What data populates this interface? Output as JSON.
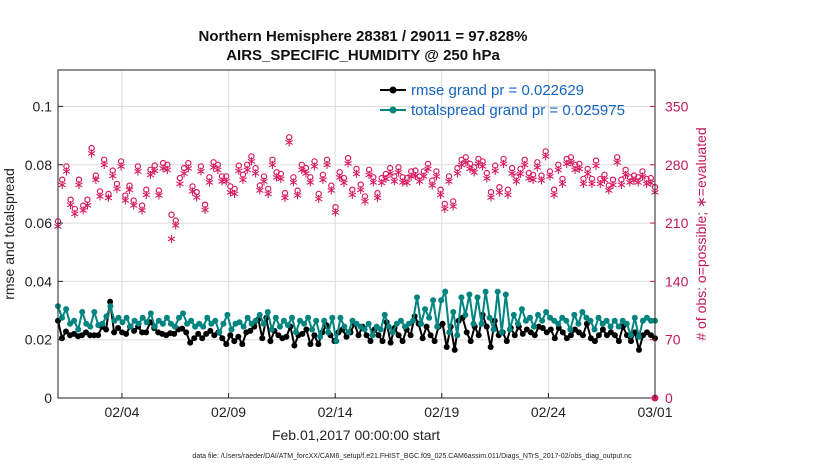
{
  "chart_data": {
    "type": "line",
    "title": "Northern Hemisphere 28381 / 29011 = 97.828%",
    "subtitle": "AIRS_SPECIFIC_HUMIDITY @ 250 hPa",
    "xlabel": "Feb.01,2017 00:00:00 start",
    "ylabel": "rmse and totalspread",
    "ylabel_right": "# of obs: o=possible; ∗=evaluated",
    "x_ticks": [
      "02/04",
      "02/09",
      "02/14",
      "02/19",
      "02/24",
      "03/01"
    ],
    "x_tick_days": [
      3,
      8,
      13,
      18,
      23,
      28
    ],
    "xlim": [
      0.0,
      28.0
    ],
    "y_ticks": [
      "0",
      "0.02",
      "0.04",
      "0.06",
      "0.08",
      "0.1"
    ],
    "ylim": [
      0,
      0.1125
    ],
    "y_right_ticks": [
      "0",
      "70",
      "140",
      "210",
      "280",
      "350"
    ],
    "ylim_right": [
      0,
      393.75
    ],
    "grid": true,
    "footer": "data file: /Users/raeder/DAI/ATM_forcXX/CAM6_setup/f.e21.FHIST_BGC.f09_025.CAM6assim.011/Diags_NTrS_2017-02/obs_diag_output.nc",
    "series": [
      {
        "name": "rmse grand pr = 0.022629",
        "color": "#000000",
        "marker": "circle",
        "axis": "left",
        "values": [
          0.0265,
          0.0205,
          0.0228,
          0.0215,
          0.022,
          0.0212,
          0.0215,
          0.0225,
          0.0215,
          0.0215,
          0.0215,
          0.0245,
          0.0235,
          0.033,
          0.0225,
          0.024,
          0.0225,
          0.022,
          0.0245,
          0.023,
          0.0245,
          0.0225,
          0.0225,
          0.026,
          0.024,
          0.0225,
          0.022,
          0.0215,
          0.0222,
          0.022,
          0.0235,
          0.0238,
          0.0225,
          0.019,
          0.0205,
          0.022,
          0.0205,
          0.022,
          0.023,
          0.0215,
          0.0225,
          0.0205,
          0.0185,
          0.0215,
          0.0195,
          0.021,
          0.0185,
          0.0225,
          0.023,
          0.0245,
          0.027,
          0.0205,
          0.0275,
          0.0195,
          0.023,
          0.0215,
          0.0205,
          0.021,
          0.0245,
          0.018,
          0.0215,
          0.022,
          0.0235,
          0.0185,
          0.0215,
          0.0185,
          0.0225,
          0.025,
          0.0215,
          0.0195,
          0.0225,
          0.0235,
          0.021,
          0.0225,
          0.0255,
          0.0215,
          0.0245,
          0.0215,
          0.0195,
          0.0235,
          0.0215,
          0.0195,
          0.026,
          0.019,
          0.024,
          0.0215,
          0.0195,
          0.0235,
          0.0215,
          0.028,
          0.0255,
          0.0205,
          0.0245,
          0.0215,
          0.0195,
          0.0245,
          0.0255,
          0.0175,
          0.0245,
          0.0165,
          0.0265,
          0.0275,
          0.0225,
          0.0195,
          0.0245,
          0.0215,
          0.0285,
          0.0245,
          0.0175,
          0.0265,
          0.0215,
          0.0225,
          0.0195,
          0.024,
          0.0215,
          0.0245,
          0.022,
          0.0235,
          0.0225,
          0.0215,
          0.0245,
          0.024,
          0.0225,
          0.0235,
          0.0205,
          0.024,
          0.0225,
          0.0205,
          0.0215,
          0.0235,
          0.0225,
          0.0215,
          0.0255,
          0.0205,
          0.0195,
          0.0215,
          0.0235,
          0.0215,
          0.0225,
          0.0215,
          0.0195,
          0.0245,
          0.0215,
          0.0195,
          0.0225,
          0.0165,
          0.0215,
          0.0225,
          0.0215,
          0.0205
        ]
      },
      {
        "name": "totalspread grand pr = 0.025975",
        "color": "#00847f",
        "marker": "circle",
        "axis": "left",
        "values": [
          0.0315,
          0.0275,
          0.0305,
          0.0255,
          0.0265,
          0.0235,
          0.0295,
          0.0255,
          0.0245,
          0.0295,
          0.025,
          0.0255,
          0.028,
          0.0315,
          0.0265,
          0.0275,
          0.026,
          0.0275,
          0.0245,
          0.0265,
          0.0255,
          0.0275,
          0.026,
          0.029,
          0.0245,
          0.0265,
          0.0255,
          0.0275,
          0.0255,
          0.0245,
          0.0275,
          0.029,
          0.0255,
          0.0265,
          0.0245,
          0.0255,
          0.0245,
          0.0275,
          0.0255,
          0.0265,
          0.0225,
          0.0255,
          0.0285,
          0.0235,
          0.0255,
          0.026,
          0.0245,
          0.0275,
          0.0255,
          0.0265,
          0.0285,
          0.0255,
          0.0295,
          0.0235,
          0.0275,
          0.0245,
          0.0265,
          0.025,
          0.0275,
          0.0225,
          0.0265,
          0.0255,
          0.0275,
          0.0235,
          0.0265,
          0.021,
          0.0265,
          0.0225,
          0.0275,
          0.0195,
          0.0275,
          0.0245,
          0.0225,
          0.0265,
          0.0255,
          0.0245,
          0.0235,
          0.0255,
          0.0215,
          0.0245,
          0.0235,
          0.0285,
          0.0245,
          0.0225,
          0.0255,
          0.0265,
          0.0245,
          0.0255,
          0.0265,
          0.0345,
          0.0255,
          0.0305,
          0.0275,
          0.0335,
          0.0245,
          0.0335,
          0.0365,
          0.0225,
          0.0295,
          0.0215,
          0.0345,
          0.0285,
          0.0355,
          0.0255,
          0.0345,
          0.0255,
          0.0365,
          0.0275,
          0.0235,
          0.0365,
          0.0225,
          0.0355,
          0.0235,
          0.0285,
          0.0255,
          0.0305,
          0.0265,
          0.0275,
          0.0245,
          0.0285,
          0.0265,
          0.0295,
          0.0275,
          0.0265,
          0.0255,
          0.0275,
          0.0265,
          0.0235,
          0.0285,
          0.0255,
          0.0295,
          0.0275,
          0.0265,
          0.0235,
          0.0275,
          0.0255,
          0.0265,
          0.0245,
          0.0265,
          0.0245,
          0.0265,
          0.0255,
          0.0215,
          0.0275,
          0.021,
          0.0265,
          0.0275,
          0.0265,
          0.0265
        ]
      },
      {
        "name": "possible",
        "color": "#d81b60",
        "marker": "o",
        "axis": "right",
        "values": [
          212,
          262,
          278,
          238,
          227,
          262,
          231,
          238,
          300,
          267,
          248,
          286,
          245,
          273,
          257,
          284,
          243,
          255,
          237,
          278,
          231,
          250,
          274,
          279,
          249,
          282,
          280,
          220,
          213,
          264,
          276,
          282,
          254,
          247,
          278,
          232,
          265,
          283,
          280,
          266,
          266,
          254,
          251,
          279,
          268,
          280,
          290,
          276,
          255,
          266,
          251,
          286,
          271,
          269,
          246,
          313,
          265,
          249,
          280,
          276,
          265,
          284,
          245,
          268,
          286,
          255,
          229,
          271,
          264,
          288,
          250,
          275,
          256,
          242,
          274,
          265,
          246,
          264,
          269,
          276,
          266,
          277,
          265,
          264,
          272,
          273,
          266,
          272,
          281,
          261,
          272,
          250,
          233,
          266,
          236,
          276,
          286,
          289,
          281,
          277,
          287,
          284,
          270,
          247,
          279,
          253,
          287,
          250,
          276,
          266,
          275,
          286,
          270,
          268,
          283,
          267,
          296,
          272,
          250,
          280,
          263,
          287,
          289,
          280,
          281,
          263,
          275,
          263,
          285,
          263,
          268,
          255,
          262,
          289,
          262,
          274,
          265,
          267,
          265,
          272,
          263,
          264,
          253
        ]
      },
      {
        "name": "evaluated",
        "color": "#d81b60",
        "marker": "*",
        "axis": "right",
        "values": [
          207,
          257,
          273,
          233,
          222,
          257,
          226,
          232,
          295,
          263,
          243,
          281,
          241,
          268,
          252,
          279,
          238,
          251,
          232,
          273,
          226,
          245,
          269,
          274,
          244,
          277,
          275,
          192,
          208,
          258,
          271,
          277,
          249,
          242,
          273,
          227,
          260,
          278,
          275,
          261,
          261,
          248,
          246,
          274,
          263,
          275,
          285,
          271,
          250,
          261,
          246,
          281,
          266,
          264,
          241,
          308,
          260,
          244,
          275,
          271,
          260,
          279,
          240,
          263,
          281,
          250,
          224,
          266,
          259,
          283,
          245,
          270,
          251,
          237,
          269,
          260,
          241,
          259,
          264,
          271,
          261,
          272,
          260,
          259,
          267,
          268,
          261,
          267,
          276,
          256,
          267,
          245,
          228,
          261,
          231,
          271,
          281,
          284,
          276,
          272,
          282,
          279,
          265,
          242,
          274,
          248,
          282,
          245,
          271,
          261,
          270,
          281,
          265,
          263,
          278,
          262,
          291,
          267,
          245,
          275,
          258,
          282,
          284,
          275,
          276,
          258,
          270,
          258,
          280,
          258,
          263,
          250,
          257,
          284,
          257,
          269,
          260,
          262,
          260,
          267,
          258,
          259,
          248
        ]
      }
    ]
  }
}
